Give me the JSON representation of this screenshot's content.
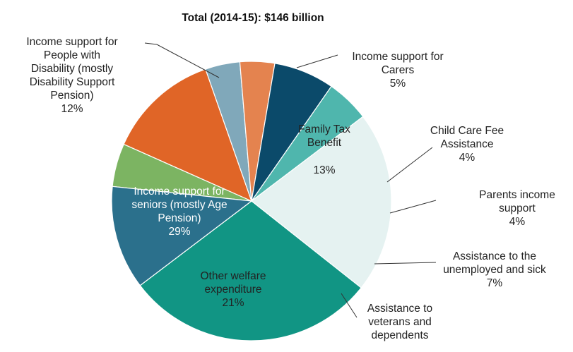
{
  "chart_data": {
    "type": "pie",
    "title": "Total (2014-15): $146 billion",
    "unit": "%",
    "slices": [
      {
        "key": "carers",
        "label_lines": [
          "Income support for",
          "Carers"
        ],
        "value_text": "5%",
        "value": 5,
        "color": "#7cb462"
      },
      {
        "key": "ftb",
        "label_lines": [
          "Family Tax",
          "Benefit"
        ],
        "value_text": "13%",
        "value": 13,
        "color": "#e06527"
      },
      {
        "key": "ccfa",
        "label_lines": [
          "Child Care Fee",
          "Assistance"
        ],
        "value_text": "4%",
        "value": 4,
        "color": "#80a8ba"
      },
      {
        "key": "parents",
        "label_lines": [
          "Parents income",
          "support"
        ],
        "value_text": "4%",
        "value": 4,
        "color": "#e4834f"
      },
      {
        "key": "unemployed",
        "label_lines": [
          "Assistance to the",
          "unemployed and sick"
        ],
        "value_text": "7%",
        "value": 7,
        "color": "#0b4a6a"
      },
      {
        "key": "veterans",
        "label_lines": [
          "Assistance to",
          "veterans and",
          "dependents"
        ],
        "value_text": "",
        "value": 5,
        "color": "#4fb6ad"
      },
      {
        "key": "other",
        "label_lines": [
          "Other welfare",
          "expenditure"
        ],
        "value_text": "21%",
        "value": 21,
        "color": "#e5f2f1"
      },
      {
        "key": "seniors",
        "label_lines": [
          "Income support for",
          "seniors (mostly Age",
          "Pension)"
        ],
        "value_text": "29%",
        "value": 29,
        "color": "#119584"
      },
      {
        "key": "disability",
        "label_lines": [
          "Income support for",
          "People with",
          "Disability (mostly",
          "Disability Support",
          "Pension)"
        ],
        "value_text": "12%",
        "value": 12,
        "color": "#2b708c"
      }
    ]
  }
}
